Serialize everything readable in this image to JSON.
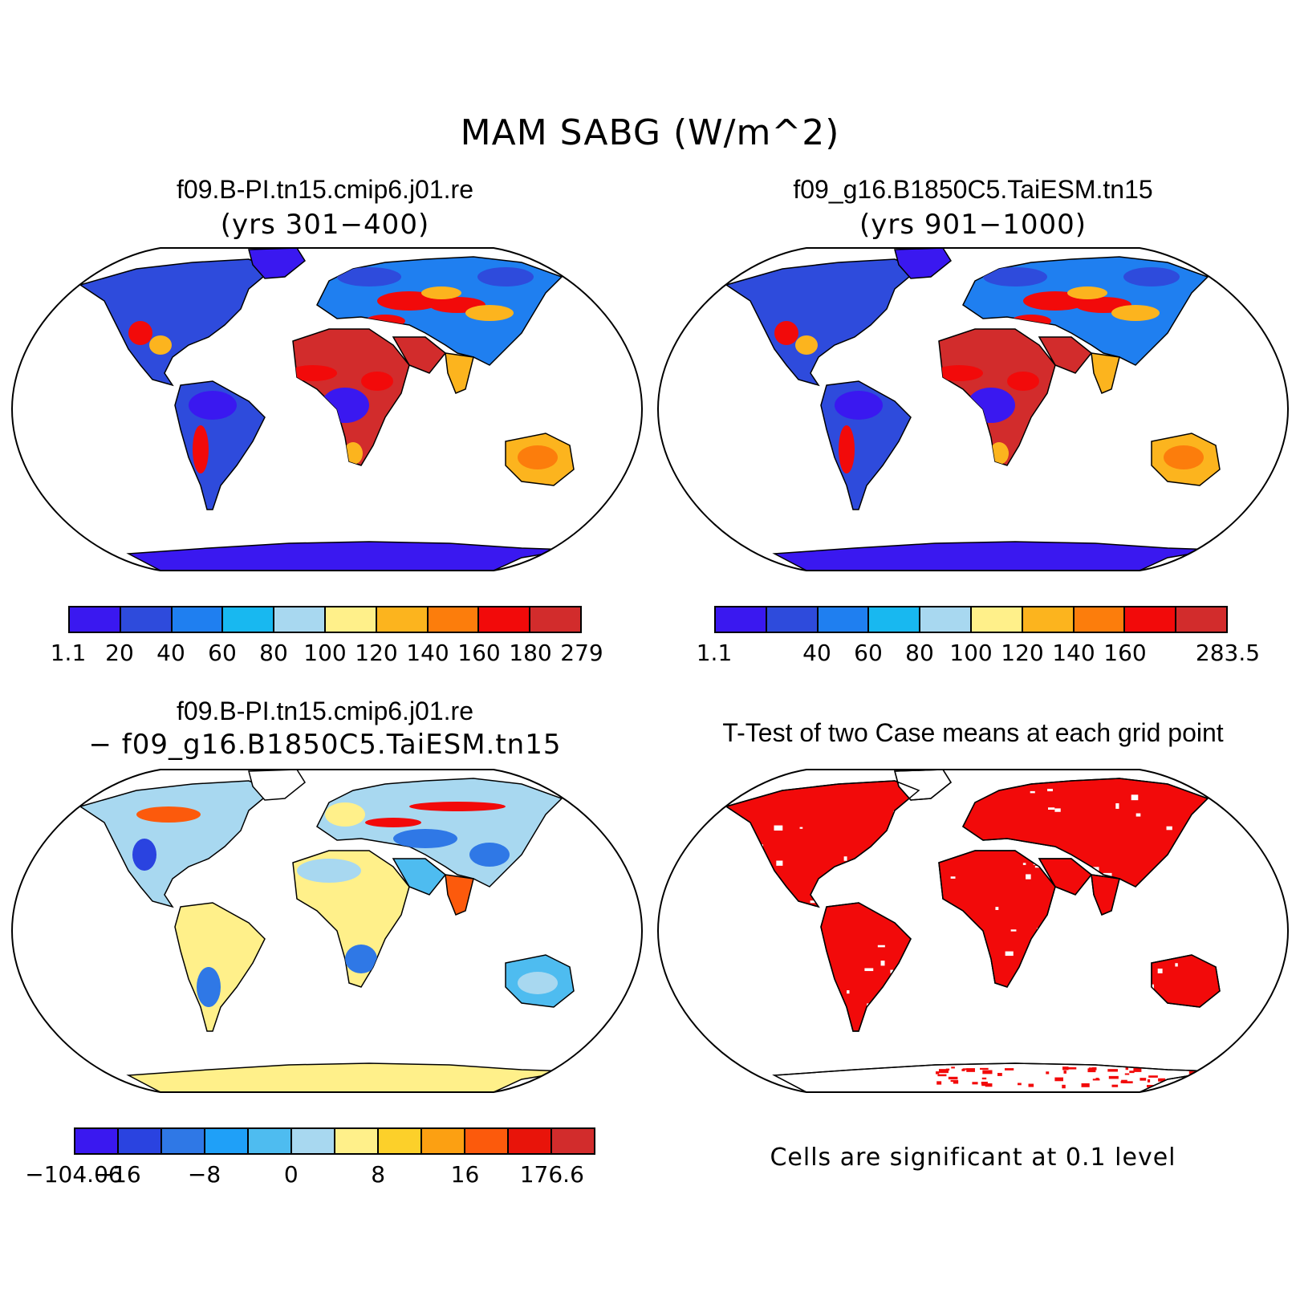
{
  "title": "MAM SABG (W/m^2)",
  "panels": [
    {
      "title": "f09.B-PI.tn15.cmip6.j01.re",
      "subtitle": "(yrs 301−400)",
      "kind": "field",
      "colorbar": {
        "colors": [
          "#3a18f0",
          "#2e4bdc",
          "#1f7ff0",
          "#18b8f0",
          "#a8d8f0",
          "#fff08a",
          "#fcb41e",
          "#fc7d0c",
          "#f20a0a",
          "#d22c2c"
        ],
        "labels": [
          "1.1",
          "20",
          "40",
          "60",
          "80",
          "100",
          "120",
          "140",
          "160",
          "180",
          "279"
        ]
      }
    },
    {
      "title": "f09_g16.B1850C5.TaiESM.tn15",
      "subtitle": "(yrs 901−1000)",
      "kind": "field",
      "colorbar": {
        "colors": [
          "#3a18f0",
          "#2e4bdc",
          "#1f7ff0",
          "#18b8f0",
          "#a8d8f0",
          "#fff08a",
          "#fcb41e",
          "#fc7d0c",
          "#f20a0a",
          "#d22c2c"
        ],
        "labels": [
          "1.1",
          "",
          "40",
          "60",
          "80",
          "100",
          "120",
          "140",
          "160",
          "",
          "283.5"
        ]
      }
    },
    {
      "title": "f09.B-PI.tn15.cmip6.j01.re",
      "subtitle": "− f09_g16.B1850C5.TaiESM.tn15",
      "kind": "difference",
      "colorbar": {
        "colors": [
          "#3a18f0",
          "#2a43e0",
          "#2f78e6",
          "#1fa0f8",
          "#4ebcf0",
          "#a8d8f0",
          "#fff08a",
          "#fcd02a",
          "#fca012",
          "#fc5a0c",
          "#e8140a",
          "#d22c2c"
        ],
        "labels": [
          "−104.06",
          "−16",
          "",
          "−8",
          "",
          "0",
          "",
          "8",
          "",
          "16",
          "",
          "176.6"
        ]
      }
    },
    {
      "title": "T-Test of two Case means at each grid point",
      "kind": "ttest",
      "note": "Cells are significant at 0.1 level"
    }
  ]
}
